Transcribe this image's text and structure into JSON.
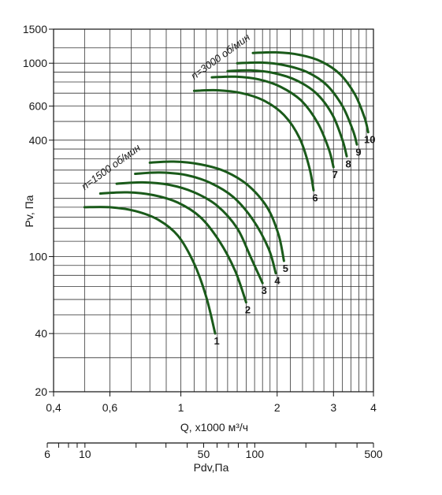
{
  "chart_data": {
    "type": "line",
    "title": "",
    "xlabel": "Q, x1000 м³/ч",
    "ylabel": "Pv, Па",
    "x_scale": "log",
    "y_scale": "log",
    "xlim": [
      0.4,
      4
    ],
    "ylim": [
      20,
      1500
    ],
    "x_ticks": [
      0.4,
      0.6,
      1,
      2,
      3,
      4
    ],
    "x_tick_labels": [
      "0,4",
      "0,6",
      "1",
      "2",
      "3",
      "4"
    ],
    "y_ticks": [
      20,
      40,
      100,
      400,
      600,
      1000,
      1500
    ],
    "y_tick_labels": [
      "20",
      "40",
      "100",
      "400",
      "600",
      "1000",
      "1500"
    ],
    "grid": true,
    "curve_color": "#1a5a1a",
    "secondary_axis": {
      "label": "Pdv,Па",
      "ticks": [
        6,
        10,
        50,
        100,
        500
      ],
      "tick_labels": [
        "6",
        "10",
        "50",
        "100",
        "500"
      ],
      "range": [
        6,
        500
      ]
    },
    "annotations": [
      {
        "text": "n=1500 об/мин",
        "x": 0.5,
        "y": 220
      },
      {
        "text": "n=3000 об/мин",
        "x": 1.1,
        "y": 820
      }
    ],
    "series": [
      {
        "label": "1",
        "x": [
          0.5,
          0.6,
          0.72,
          0.85,
          0.98,
          1.1,
          1.2,
          1.28
        ],
        "y": [
          180,
          180,
          172,
          155,
          128,
          92,
          62,
          40
        ]
      },
      {
        "label": "2",
        "x": [
          0.56,
          0.68,
          0.82,
          0.98,
          1.15,
          1.32,
          1.48,
          1.6
        ],
        "y": [
          212,
          215,
          208,
          190,
          160,
          120,
          84,
          58
        ]
      },
      {
        "label": "3",
        "x": [
          0.63,
          0.76,
          0.92,
          1.1,
          1.3,
          1.5,
          1.65,
          1.8
        ],
        "y": [
          238,
          242,
          235,
          215,
          183,
          140,
          100,
          73
        ]
      },
      {
        "label": "4",
        "x": [
          0.72,
          0.86,
          1.04,
          1.24,
          1.46,
          1.68,
          1.88,
          1.98
        ],
        "y": [
          268,
          272,
          264,
          240,
          203,
          155,
          110,
          82
        ]
      },
      {
        "label": "5",
        "x": [
          0.8,
          0.95,
          1.15,
          1.38,
          1.62,
          1.86,
          2.02,
          2.1
        ],
        "y": [
          306,
          310,
          300,
          275,
          234,
          180,
          130,
          95
        ]
      },
      {
        "label": "6",
        "x": [
          1.1,
          1.3,
          1.55,
          1.82,
          2.1,
          2.35,
          2.52,
          2.6
        ],
        "y": [
          720,
          725,
          700,
          640,
          540,
          410,
          290,
          220
        ]
      },
      {
        "label": "7",
        "x": [
          1.25,
          1.48,
          1.75,
          2.05,
          2.38,
          2.68,
          2.9,
          3.0
        ],
        "y": [
          845,
          852,
          825,
          755,
          640,
          490,
          360,
          290
        ]
      },
      {
        "label": "8",
        "x": [
          1.4,
          1.65,
          1.95,
          2.3,
          2.66,
          2.98,
          3.2,
          3.3
        ],
        "y": [
          910,
          918,
          890,
          815,
          695,
          540,
          400,
          330
        ]
      },
      {
        "label": "9",
        "x": [
          1.5,
          1.78,
          2.1,
          2.48,
          2.86,
          3.2,
          3.45,
          3.55
        ],
        "y": [
          1000,
          1008,
          978,
          900,
          770,
          600,
          450,
          380
        ]
      },
      {
        "label": "10",
        "x": [
          1.68,
          1.98,
          2.35,
          2.75,
          3.15,
          3.5,
          3.75,
          3.85
        ],
        "y": [
          1130,
          1138,
          1105,
          1020,
          875,
          690,
          525,
          440
        ]
      }
    ]
  }
}
